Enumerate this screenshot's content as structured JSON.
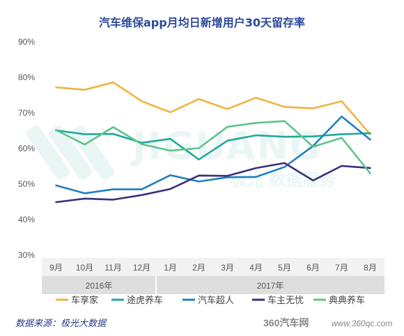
{
  "chart_data": {
    "type": "line",
    "title": "汽车维保app月均日新增用户30天留存率",
    "categories": [
      "9月",
      "10月",
      "11月",
      "12月",
      "1月",
      "2月",
      "3月",
      "4月",
      "5月",
      "6月",
      "7月",
      "8月"
    ],
    "year_groups": [
      {
        "label": "2016年",
        "start": 0,
        "end": 3
      },
      {
        "label": "2017年",
        "start": 4,
        "end": 11
      }
    ],
    "y_ticks": [
      "90%",
      "80%",
      "70%",
      "60%",
      "50%",
      "40%",
      "30%"
    ],
    "ylim": [
      30,
      90
    ],
    "grid": false,
    "legend_position": "bottom",
    "series": [
      {
        "name": "车享家",
        "color": "#f0b43c",
        "values": [
          77.2,
          76.5,
          78.6,
          73.3,
          70.2,
          73.9,
          71.1,
          74.3,
          71.7,
          71.3,
          73.3,
          64.0
        ]
      },
      {
        "name": "途虎养车",
        "color": "#1fa89c",
        "values": [
          65.1,
          64.0,
          64.1,
          61.6,
          62.7,
          56.9,
          62.2,
          63.7,
          63.3,
          63.4,
          64.0,
          64.3
        ]
      },
      {
        "name": "汽车超人",
        "color": "#1f7fc0",
        "values": [
          49.6,
          47.4,
          48.5,
          48.5,
          52.5,
          50.7,
          51.9,
          52.0,
          54.8,
          60.7,
          69.0,
          62.5
        ]
      },
      {
        "name": "车主无忧",
        "color": "#3a2f7a",
        "values": [
          44.9,
          45.9,
          45.6,
          46.9,
          48.6,
          52.4,
          52.3,
          54.5,
          55.9,
          51.0,
          55.1,
          54.5
        ]
      },
      {
        "name": "典典养车",
        "color": "#5cc48a",
        "values": [
          65.2,
          61.1,
          66.0,
          61.2,
          59.4,
          60.1,
          66.1,
          67.2,
          67.7,
          60.5,
          63.0,
          53.0
        ]
      }
    ]
  },
  "source_label": "数据来源：极光大数据",
  "watermark": {
    "brand": "JIGUANG",
    "slogan": "极光 数据服务"
  },
  "site_logo": {
    "text": "360汽车网",
    "url_text": "www.360qc.com"
  }
}
